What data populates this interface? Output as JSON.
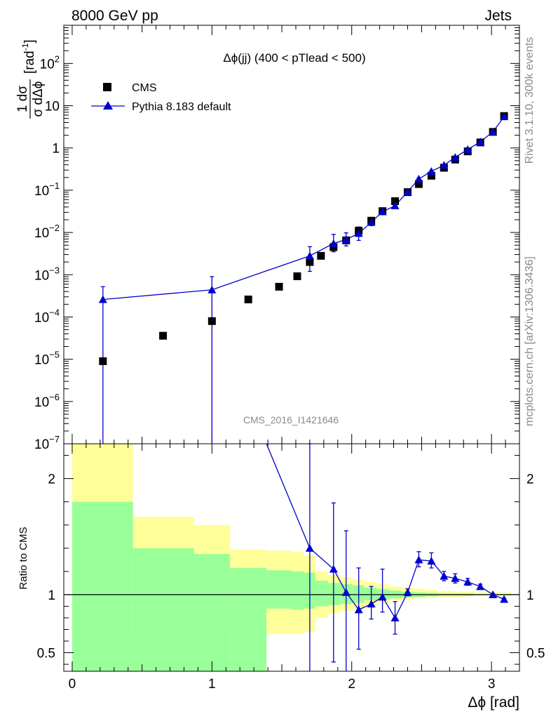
{
  "header": {
    "left": "8000 GeV pp",
    "right": "Jets"
  },
  "side_labels": {
    "rivet": "Rivet 3.1.10,  300k events",
    "mcplots": "mcplots.cern.ch [arXiv:1306.3436]"
  },
  "chart_data": [
    {
      "type": "scatter",
      "panel": "main",
      "title": "Δϕ(jj) (400 < pTlead <  500)",
      "watermark": "CMS_2016_I1421646",
      "ylabel_top": "1 dσ",
      "ylabel_bottom": "σ dΔϕ",
      "ylabel_unit": "[rad",
      "ylabel_unit_exp": "-1",
      "ylabel_unit_close": "]",
      "yscale": "log",
      "ylim": [
        1e-07,
        800
      ],
      "xlim": [
        -0.06,
        3.2
      ],
      "y_tick_labels": [
        {
          "v": 1e-07,
          "base": "10",
          "exp": "−7"
        },
        {
          "v": 1e-06,
          "base": "10",
          "exp": "−6"
        },
        {
          "v": 1e-05,
          "base": "10",
          "exp": "−5"
        },
        {
          "v": 0.0001,
          "base": "10",
          "exp": "−4"
        },
        {
          "v": 0.001,
          "base": "10",
          "exp": "−3"
        },
        {
          "v": 0.01,
          "base": "10",
          "exp": "−2"
        },
        {
          "v": 0.1,
          "base": "10",
          "exp": "−1"
        },
        {
          "v": 1,
          "base": "1",
          "exp": ""
        },
        {
          "v": 10,
          "base": "10",
          "exp": ""
        },
        {
          "v": 100,
          "base": "10",
          "exp": "2"
        }
      ],
      "legend": {
        "position": "top-left",
        "entries": [
          "CMS",
          "Pythia 8.183 default"
        ]
      },
      "series": [
        {
          "name": "CMS",
          "marker": "square",
          "color": "#000000",
          "x": [
            0.22,
            0.65,
            1.0,
            1.26,
            1.48,
            1.61,
            1.7,
            1.78,
            1.87,
            1.96,
            2.05,
            2.14,
            2.22,
            2.31,
            2.4,
            2.48,
            2.57,
            2.66,
            2.74,
            2.83,
            2.92,
            3.01,
            3.09
          ],
          "y": [
            9e-06,
            3.6e-05,
            8e-05,
            0.00026,
            0.00052,
            0.00092,
            0.002,
            0.0028,
            0.0045,
            0.0065,
            0.011,
            0.019,
            0.032,
            0.055,
            0.09,
            0.14,
            0.22,
            0.34,
            0.53,
            0.83,
            1.35,
            2.4,
            5.7
          ]
        },
        {
          "name": "Pythia 8.183 default",
          "marker": "triangle",
          "color": "#0000cc",
          "x": [
            0.22,
            1.0,
            1.7,
            1.87,
            1.96,
            2.05,
            2.14,
            2.22,
            2.31,
            2.4,
            2.48,
            2.57,
            2.66,
            2.74,
            2.83,
            2.92,
            3.01,
            3.09
          ],
          "y": [
            0.00026,
            0.00044,
            0.0028,
            0.0055,
            0.0068,
            0.0095,
            0.0175,
            0.031,
            0.043,
            0.092,
            0.185,
            0.28,
            0.39,
            0.6,
            0.92,
            1.4,
            2.4,
            5.5
          ],
          "err_lo": [
            0.00026,
            0.00044,
            0.0016,
            0.002,
            0.002,
            0.003,
            0.003,
            0.003,
            0.003,
            0.005,
            0.01,
            0.015,
            0.015,
            0.02,
            0.03,
            0.05,
            0.05,
            0.1
          ],
          "err_hi": [
            0.00026,
            0.00046,
            0.0018,
            0.0035,
            0.003,
            0.004,
            0.003,
            0.003,
            0.003,
            0.005,
            0.01,
            0.015,
            0.015,
            0.02,
            0.03,
            0.05,
            0.05,
            0.1
          ]
        }
      ]
    },
    {
      "type": "line",
      "panel": "ratio",
      "ylabel": "Ratio to CMS",
      "xlabel": "Δϕ [rad]",
      "xlim": [
        -0.06,
        3.2
      ],
      "ylim": [
        0.34,
        2.3
      ],
      "x_tick_labels": [
        0,
        1,
        2,
        3
      ],
      "y_tick_labels": [
        "0.5",
        "1",
        "2"
      ],
      "y_tick_values": [
        0.5,
        1,
        2
      ],
      "reference_line": 1,
      "bands": {
        "bins": [
          0.0,
          0.435,
          0.87,
          1.13,
          1.39,
          1.57,
          1.655,
          1.74,
          1.83,
          1.92,
          2.005,
          2.09,
          2.18,
          2.27,
          2.355,
          2.44,
          2.53,
          2.61,
          2.7,
          2.79,
          2.875,
          2.96,
          3.05,
          3.14
        ],
        "yellow_lo": [
          0.34,
          0.66,
          0.66,
          0.34,
          0.66,
          0.66,
          0.68,
          0.8,
          0.84,
          0.86,
          0.88,
          0.91,
          0.93,
          0.95,
          0.96,
          0.97,
          0.97,
          0.98,
          0.98,
          0.985,
          0.99,
          0.99,
          0.99
        ],
        "yellow_hi": [
          2.3,
          1.67,
          1.6,
          1.39,
          1.38,
          1.37,
          1.34,
          1.2,
          1.17,
          1.15,
          1.13,
          1.11,
          1.09,
          1.07,
          1.06,
          1.05,
          1.04,
          1.03,
          1.03,
          1.025,
          1.02,
          1.02,
          1.02
        ],
        "green_lo": [
          0.34,
          0.34,
          0.34,
          0.34,
          0.88,
          0.87,
          0.88,
          0.9,
          0.91,
          0.92,
          0.93,
          0.95,
          0.96,
          0.97,
          0.975,
          0.98,
          0.985,
          0.99,
          0.99,
          0.99,
          0.995,
          0.995,
          0.995
        ],
        "green_hi": [
          1.8,
          1.4,
          1.35,
          1.23,
          1.21,
          1.2,
          1.19,
          1.12,
          1.1,
          1.09,
          1.08,
          1.06,
          1.045,
          1.035,
          1.025,
          1.02,
          1.015,
          1.01,
          1.01,
          1.01,
          1.005,
          1.005,
          1.005
        ],
        "yellow_color": "#ffff99",
        "green_color": "#99ff99"
      },
      "series": [
        {
          "name": "Pythia 8.183 default",
          "color": "#0000cc",
          "x": [
            1.7,
            1.87,
            1.96,
            2.05,
            2.14,
            2.22,
            2.31,
            2.4,
            2.48,
            2.57,
            2.66,
            2.74,
            2.83,
            2.92,
            3.01,
            3.09
          ],
          "y": [
            1.4,
            1.22,
            1.02,
            0.87,
            0.92,
            0.98,
            0.8,
            1.02,
            1.3,
            1.29,
            1.16,
            1.14,
            1.11,
            1.07,
            1.0,
            0.96
          ],
          "err_lo": [
            1.06,
            0.8,
            0.8,
            0.34,
            0.13,
            0.13,
            0.14,
            0.03,
            0.06,
            0.06,
            0.04,
            0.04,
            0.03,
            0.02,
            0.01,
            0.01
          ],
          "err_hi": [
            0.9,
            0.57,
            0.53,
            0.36,
            0.15,
            0.24,
            0.14,
            0.03,
            0.07,
            0.07,
            0.04,
            0.04,
            0.03,
            0.02,
            0.01,
            0.01
          ],
          "offscale_segment_from": [
            1.39,
            2.3
          ]
        }
      ]
    }
  ]
}
